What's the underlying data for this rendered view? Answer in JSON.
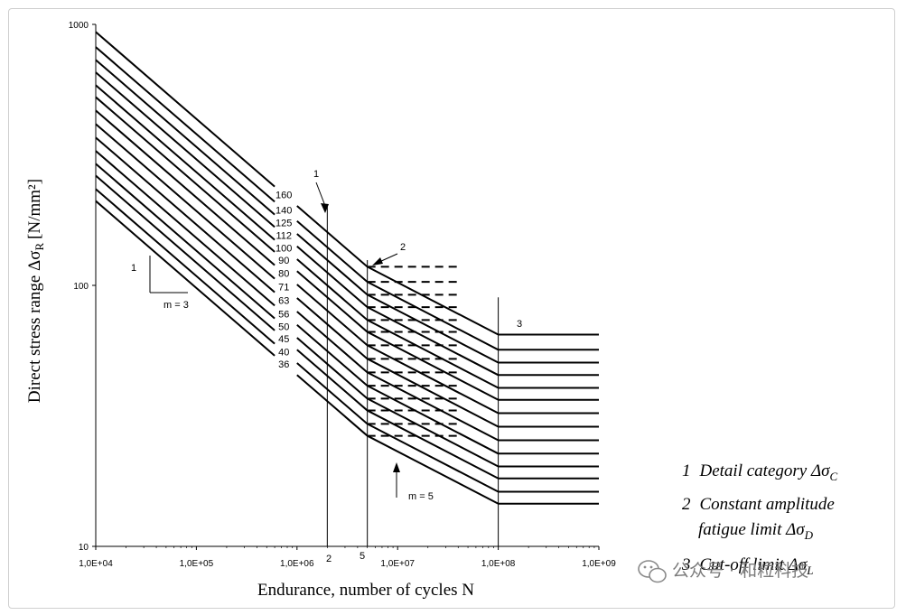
{
  "chart_data": {
    "type": "line",
    "title": "",
    "xlabel": "Endurance, number of cycles N",
    "ylabel_main": "Direct stress range Δσ",
    "ylabel_sub": "R",
    "ylabel_unit": "[N/mm²]",
    "xscale": "log",
    "yscale": "log",
    "xlim": [
      10000,
      1000000000
    ],
    "ylim": [
      10,
      1000
    ],
    "x_ticks": [
      {
        "value": 10000,
        "label": "1,0E+04"
      },
      {
        "value": 100000,
        "label": "1,0E+05"
      },
      {
        "value": 1000000,
        "label": "1,0E+06"
      },
      {
        "value": 10000000,
        "label": "1,0E+07"
      },
      {
        "value": 100000000,
        "label": "1,0E+08"
      },
      {
        "value": 1000000000,
        "label": "1,0E+09"
      }
    ],
    "y_ticks": [
      {
        "value": 10,
        "label": "10"
      },
      {
        "value": 100,
        "label": "100"
      },
      {
        "value": 1000,
        "label": "1000"
      }
    ],
    "n_constant_amplitude": 5000000,
    "n_reference": 2000000,
    "n_cutoff": 100000000,
    "n_dashed_end": 40000000,
    "slope_m1": 3,
    "slope_m2": 5,
    "series": [
      {
        "name": "160",
        "delta_sigma_c": 160
      },
      {
        "name": "140",
        "delta_sigma_c": 140
      },
      {
        "name": "125",
        "delta_sigma_c": 125
      },
      {
        "name": "112",
        "delta_sigma_c": 112
      },
      {
        "name": "100",
        "delta_sigma_c": 100
      },
      {
        "name": "90",
        "delta_sigma_c": 90
      },
      {
        "name": "80",
        "delta_sigma_c": 80
      },
      {
        "name": "71",
        "delta_sigma_c": 71
      },
      {
        "name": "63",
        "delta_sigma_c": 63
      },
      {
        "name": "56",
        "delta_sigma_c": 56
      },
      {
        "name": "50",
        "delta_sigma_c": 50
      },
      {
        "name": "45",
        "delta_sigma_c": 45
      },
      {
        "name": "40",
        "delta_sigma_c": 40
      },
      {
        "name": "36",
        "delta_sigma_c": 36
      }
    ],
    "annotations": {
      "label_1": "1",
      "label_2": "2",
      "label_3": "3",
      "label_5": "5",
      "slope_m3": "m = 3",
      "slope_m5": "m = 5"
    },
    "legend": [
      {
        "num": "1",
        "text": "Detail category Δσ",
        "sub": "C"
      },
      {
        "num": "2",
        "text": "Constant amplitude",
        "text2": "fatigue limit Δσ",
        "sub": "D"
      },
      {
        "num": "3",
        "text": "Cut-off limit Δσ",
        "sub": "L"
      }
    ]
  },
  "watermark": "公众号 · 和粒科技"
}
